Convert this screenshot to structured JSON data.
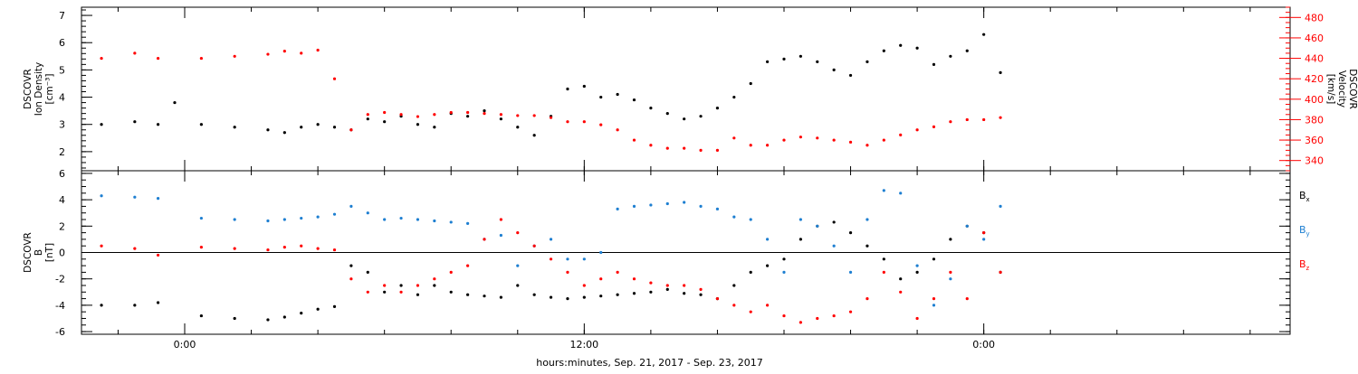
{
  "chart_data": [
    {
      "type": "scatter",
      "panel": "top",
      "ylabel_lines": [
        "DSCOVR",
        "Ion Density",
        "[cm⁻³]"
      ],
      "ylabel_right_lines": [
        "DSCOVR",
        "Velocity",
        "[km/s]"
      ],
      "ylim": [
        1.3,
        7.3
      ],
      "y_ticks": [
        2,
        3,
        4,
        5,
        6,
        7
      ],
      "ylim_right": [
        330,
        490
      ],
      "y_ticks_right": [
        340,
        360,
        380,
        400,
        420,
        440,
        460,
        480
      ],
      "series": [
        {
          "color": "#000000",
          "axis": "left",
          "x": [
            -2.5,
            -1.5,
            -0.8,
            -0.3,
            0.5,
            1.5,
            2.5,
            3.0,
            3.5,
            4.0,
            4.5,
            5.0,
            5.5,
            6.0,
            6.5,
            7.0,
            7.5,
            8.0,
            8.5,
            9.0,
            9.5,
            10.0,
            10.5,
            11.0,
            11.5,
            12.0,
            12.5,
            13.0,
            13.5,
            14.0,
            14.5,
            15.0,
            15.5,
            16.0,
            16.5,
            17.0,
            17.5,
            18.0,
            18.5,
            19.0,
            19.5,
            20.0,
            20.5,
            21.0,
            21.5,
            22.0,
            22.5,
            23.0,
            23.5,
            24.0,
            24.5
          ],
          "y": [
            3.0,
            3.1,
            3.0,
            3.8,
            3.0,
            2.9,
            2.8,
            2.7,
            2.9,
            3.0,
            2.9,
            2.8,
            3.2,
            3.1,
            3.3,
            3.0,
            2.9,
            3.4,
            3.3,
            3.5,
            3.2,
            2.9,
            2.6,
            3.3,
            4.3,
            4.4,
            4.0,
            4.1,
            3.9,
            3.6,
            3.4,
            3.2,
            3.3,
            3.6,
            4.0,
            4.5,
            5.3,
            5.4,
            5.5,
            5.3,
            5.0,
            4.8,
            5.3,
            5.7,
            5.9,
            5.8,
            5.2,
            5.5,
            5.7,
            6.3,
            4.9
          ]
        },
        {
          "color": "#ff0000",
          "axis": "right",
          "x": [
            -2.5,
            -1.5,
            -0.8,
            0.5,
            1.5,
            2.5,
            3.0,
            3.5,
            4.0,
            4.5,
            5.0,
            5.5,
            6.0,
            6.5,
            7.0,
            7.5,
            8.0,
            8.5,
            9.0,
            9.5,
            10.0,
            10.5,
            11.0,
            11.5,
            12.0,
            12.5,
            13.0,
            13.5,
            14.0,
            14.5,
            15.0,
            15.5,
            16.0,
            16.5,
            17.0,
            17.5,
            18.0,
            18.5,
            19.0,
            19.5,
            20.0,
            20.5,
            21.0,
            21.5,
            22.0,
            22.5,
            23.0,
            23.5,
            24.0,
            24.5
          ],
          "y": [
            440,
            445,
            440,
            440,
            442,
            444,
            447,
            445,
            448,
            420,
            370,
            385,
            387,
            385,
            383,
            385,
            387,
            387,
            386,
            385,
            384,
            384,
            382,
            378,
            378,
            375,
            370,
            360,
            355,
            352,
            352,
            350,
            350,
            362,
            355,
            355,
            360,
            363,
            362,
            360,
            358,
            355,
            360,
            365,
            370,
            373,
            378,
            380,
            380,
            382
          ]
        }
      ]
    },
    {
      "type": "scatter",
      "panel": "bottom",
      "ylabel_lines": [
        "DSCOVR",
        "B",
        "[nT]"
      ],
      "ylim": [
        -6.2,
        6.2
      ],
      "y_ticks": [
        -6,
        -4,
        -2,
        0,
        2,
        4,
        6
      ],
      "series": [
        {
          "name": "Bx",
          "color": "#000000",
          "x": [
            -2.5,
            -1.5,
            -0.8,
            0.5,
            1.5,
            2.5,
            3.0,
            3.5,
            4.0,
            4.5,
            5.0,
            5.5,
            6.0,
            6.5,
            7.0,
            7.5,
            8.0,
            8.5,
            9.0,
            9.5,
            10.0,
            10.5,
            11.0,
            11.5,
            12.0,
            12.5,
            13.0,
            13.5,
            14.0,
            14.5,
            15.0,
            15.5,
            16.0,
            16.5,
            17.0,
            17.5,
            18.0,
            18.5,
            19.0,
            19.5,
            20.0,
            20.5,
            21.0,
            21.5,
            22.0,
            22.5,
            23.0,
            23.5,
            24.0,
            24.5
          ],
          "y": [
            -4.0,
            -4.0,
            -3.8,
            -4.8,
            -5.0,
            -5.1,
            -4.9,
            -4.6,
            -4.3,
            -4.1,
            -1.0,
            -1.5,
            -3.0,
            -2.5,
            -3.2,
            -2.5,
            -3.0,
            -3.2,
            -3.3,
            -3.4,
            -2.5,
            -3.2,
            -3.4,
            -3.5,
            -3.4,
            -3.3,
            -3.2,
            -3.1,
            -3.0,
            -2.8,
            -3.1,
            -3.2,
            -3.5,
            -2.5,
            -1.5,
            -1.0,
            -0.5,
            1.0,
            2.0,
            2.3,
            1.5,
            0.5,
            -0.5,
            -2.0,
            -1.5,
            -0.5,
            1.0,
            2.0,
            1.5,
            -1.5
          ]
        },
        {
          "name": "By",
          "color": "#1e7fd1",
          "x": [
            -2.5,
            -1.5,
            -0.8,
            0.5,
            1.5,
            2.5,
            3.0,
            3.5,
            4.0,
            4.5,
            5.0,
            5.5,
            6.0,
            6.5,
            7.0,
            7.5,
            8.0,
            8.5,
            9.0,
            9.5,
            10.0,
            10.5,
            11.0,
            11.5,
            12.0,
            12.5,
            13.0,
            13.5,
            14.0,
            14.5,
            15.0,
            15.5,
            16.0,
            16.5,
            17.0,
            17.5,
            18.0,
            18.5,
            19.0,
            19.5,
            20.0,
            20.5,
            21.0,
            21.5,
            22.0,
            22.5,
            23.0,
            23.5,
            24.0,
            24.5
          ],
          "y": [
            4.3,
            4.2,
            4.1,
            2.6,
            2.5,
            2.4,
            2.5,
            2.6,
            2.7,
            2.9,
            3.5,
            3.0,
            2.5,
            2.6,
            2.5,
            2.4,
            2.3,
            2.2,
            1.0,
            1.3,
            -1.0,
            0.5,
            1.0,
            -0.5,
            -0.5,
            0.0,
            3.3,
            3.5,
            3.6,
            3.7,
            3.8,
            3.5,
            3.3,
            2.7,
            2.5,
            1.0,
            -1.5,
            2.5,
            2.0,
            0.5,
            -1.5,
            2.5,
            4.7,
            4.5,
            -1.0,
            -4.0,
            -2.0,
            2.0,
            1.0,
            3.5
          ]
        },
        {
          "name": "Bz",
          "color": "#ff0000",
          "x": [
            -2.5,
            -1.5,
            -0.8,
            0.5,
            1.5,
            2.5,
            3.0,
            3.5,
            4.0,
            4.5,
            5.0,
            5.5,
            6.0,
            6.5,
            7.0,
            7.5,
            8.0,
            8.5,
            9.0,
            9.5,
            10.0,
            10.5,
            11.0,
            11.5,
            12.0,
            12.5,
            13.0,
            13.5,
            14.0,
            14.5,
            15.0,
            15.5,
            16.0,
            16.5,
            17.0,
            17.5,
            18.0,
            18.5,
            19.0,
            19.5,
            20.0,
            20.5,
            21.0,
            21.5,
            22.0,
            22.5,
            23.0,
            23.5,
            24.0,
            24.5
          ],
          "y": [
            0.5,
            0.3,
            -0.2,
            0.4,
            0.3,
            0.2,
            0.4,
            0.5,
            0.3,
            0.2,
            -2.0,
            -3.0,
            -2.5,
            -3.0,
            -2.5,
            -2.0,
            -1.5,
            -1.0,
            1.0,
            2.5,
            1.5,
            0.5,
            -0.5,
            -1.5,
            -2.5,
            -2.0,
            -1.5,
            -2.0,
            -2.3,
            -2.5,
            -2.5,
            -2.8,
            -3.5,
            -4.0,
            -4.5,
            -4.0,
            -4.8,
            -5.3,
            -5.0,
            -4.8,
            -4.5,
            -3.5,
            -1.5,
            -3.0,
            -5.0,
            -3.5,
            -1.5,
            -3.5,
            1.5,
            -1.5
          ]
        }
      ],
      "legend": [
        "Bx",
        "By",
        "Bz"
      ]
    }
  ],
  "xlim": [
    -3.1,
    33.2
  ],
  "x_tick_labels": [
    {
      "x": 0,
      "label": "0:00"
    },
    {
      "x": 12,
      "label": "12:00"
    },
    {
      "x": 24,
      "label": "0:00"
    }
  ],
  "x_minor_step": 2,
  "xlabel": "hours:minutes, Sep. 21, 2017 - Sep. 23, 2017",
  "legend_labels": {
    "Bx": {
      "base": "B",
      "sub": "x"
    },
    "By": {
      "base": "B",
      "sub": "y"
    },
    "Bz": {
      "base": "B",
      "sub": "z"
    }
  }
}
